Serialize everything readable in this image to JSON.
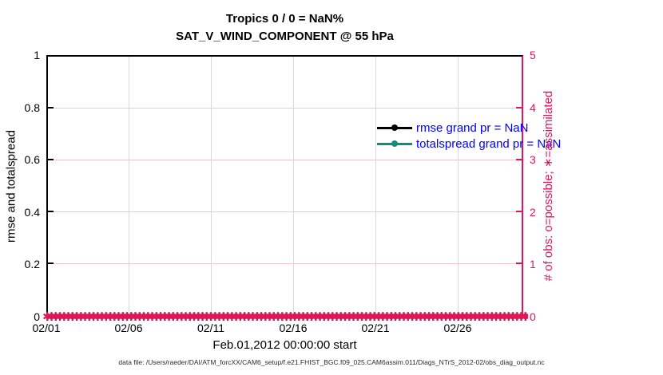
{
  "title": {
    "line1": "Tropics 0 / 0 = NaN%",
    "line2": "SAT_V_WIND_COMPONENT @ 55 hPa"
  },
  "left_axis": {
    "label": "rmse and totalspread",
    "ticks": [
      "1",
      "0.8",
      "0.6",
      "0.4",
      "0.2",
      "0"
    ]
  },
  "right_axis": {
    "label": "# of obs: o=possible; ∗=assimilated",
    "ticks": [
      "5",
      "4",
      "3",
      "2",
      "1",
      "0"
    ]
  },
  "x_axis": {
    "label": "Feb.01,2012 00:00:00 start",
    "ticks": [
      "02/01",
      "02/06",
      "02/11",
      "02/16",
      "02/21",
      "02/26"
    ]
  },
  "legend": {
    "items": [
      {
        "label": "rmse grand pr = NaN",
        "color": "#000000"
      },
      {
        "label": "totalspread grand pr = NaN",
        "color": "#108d80"
      }
    ]
  },
  "footer": "data file: /Users/raeder/DAI/ATM_forcXX/CAM6_setup/f.e21.FHIST_BGC.f09_025.CAM6assim.011/Diags_NTrS_2012-02/obs_diag_output.nc",
  "colors": {
    "right_axis": "#dd1758",
    "teal": "#108d80",
    "legend_text": "#0000ff",
    "grid_vertical": "#d9d9d9",
    "grid_horizontal": "#f2c3d2",
    "axis_black": "#000000"
  },
  "chart_data": {
    "type": "line",
    "title": "Tropics 0 / 0 = NaN%",
    "subtitle": "SAT_V_WIND_COMPONENT @ 55 hPa",
    "xlabel": "Feb.01,2012 00:00:00 start",
    "ylabel_left": "rmse and totalspread",
    "ylabel_right": "# of obs: o=possible; ∗=assimilated",
    "x_tick_labels": [
      "02/01",
      "02/06",
      "02/11",
      "02/16",
      "02/21",
      "02/26"
    ],
    "x_range": [
      "02/01",
      "03/01"
    ],
    "ylim_left": [
      0,
      1
    ],
    "ylim_right": [
      0,
      5
    ],
    "grid": true,
    "legend_position": "upper-right-inside, no box",
    "series": [
      {
        "name": "rmse",
        "grand_pr": "NaN",
        "color": "#000000",
        "marker": "filled-circle",
        "values": []
      },
      {
        "name": "totalspread",
        "grand_pr": "NaN",
        "color": "#108d80",
        "marker": "filled-circle",
        "values": []
      },
      {
        "name": "obs assimilated count",
        "axis": "right",
        "marker": "✱",
        "color": "#dd1758",
        "constant_value": 0,
        "marker_count": 116
      }
    ]
  }
}
